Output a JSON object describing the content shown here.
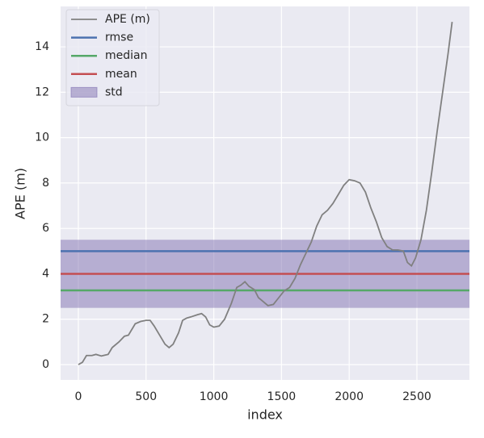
{
  "chart_data": {
    "type": "line",
    "xlabel": "index",
    "ylabel": "APE (m)",
    "xlim": [
      -131,
      2888
    ],
    "ylim": [
      -0.675,
      15.78
    ],
    "xticks": [
      0,
      500,
      1000,
      1500,
      2000,
      2500
    ],
    "yticks": [
      0,
      2,
      4,
      6,
      8,
      10,
      12,
      14
    ],
    "grid": true,
    "legend": "upper left",
    "series": [
      {
        "name": "APE (m)",
        "color": "#808080",
        "x": [
          0,
          30,
          60,
          100,
          130,
          170,
          220,
          250,
          300,
          340,
          370,
          420,
          460,
          500,
          530,
          560,
          600,
          640,
          670,
          700,
          740,
          770,
          800,
          830,
          880,
          910,
          940,
          970,
          1000,
          1040,
          1080,
          1130,
          1170,
          1200,
          1230,
          1260,
          1300,
          1330,
          1360,
          1400,
          1440,
          1480,
          1520,
          1560,
          1600,
          1640,
          1680,
          1720,
          1760,
          1800,
          1840,
          1880,
          1920,
          1960,
          2000,
          2040,
          2080,
          2120,
          2160,
          2200,
          2240,
          2280,
          2320,
          2360,
          2400,
          2430,
          2460,
          2490,
          2530,
          2570,
          2610,
          2650,
          2690,
          2730,
          2760
        ],
        "values": [
          0,
          0.1,
          0.4,
          0.4,
          0.45,
          0.38,
          0.45,
          0.75,
          1.0,
          1.25,
          1.3,
          1.8,
          1.9,
          1.95,
          1.95,
          1.7,
          1.3,
          0.9,
          0.75,
          0.9,
          1.4,
          1.95,
          2.05,
          2.1,
          2.2,
          2.25,
          2.1,
          1.75,
          1.65,
          1.7,
          2.0,
          2.7,
          3.4,
          3.5,
          3.65,
          3.45,
          3.3,
          2.95,
          2.8,
          2.6,
          2.65,
          2.95,
          3.25,
          3.4,
          3.8,
          4.4,
          4.9,
          5.4,
          6.1,
          6.6,
          6.8,
          7.1,
          7.5,
          7.9,
          8.15,
          8.1,
          8.0,
          7.6,
          6.9,
          6.3,
          5.6,
          5.2,
          5.05,
          5.05,
          5.0,
          4.5,
          4.35,
          4.7,
          5.5,
          6.8,
          8.5,
          10.3,
          12.0,
          13.7,
          15.1
        ]
      }
    ],
    "stats": [
      {
        "name": "rmse",
        "color": "#4c72b0",
        "value": 5.0
      },
      {
        "name": "median",
        "color": "#55a868",
        "value": 3.27
      },
      {
        "name": "mean",
        "color": "#c44e52",
        "value": 4.0
      }
    ],
    "std": {
      "name": "std",
      "color": "#8172b2",
      "value": 1.5
    }
  }
}
